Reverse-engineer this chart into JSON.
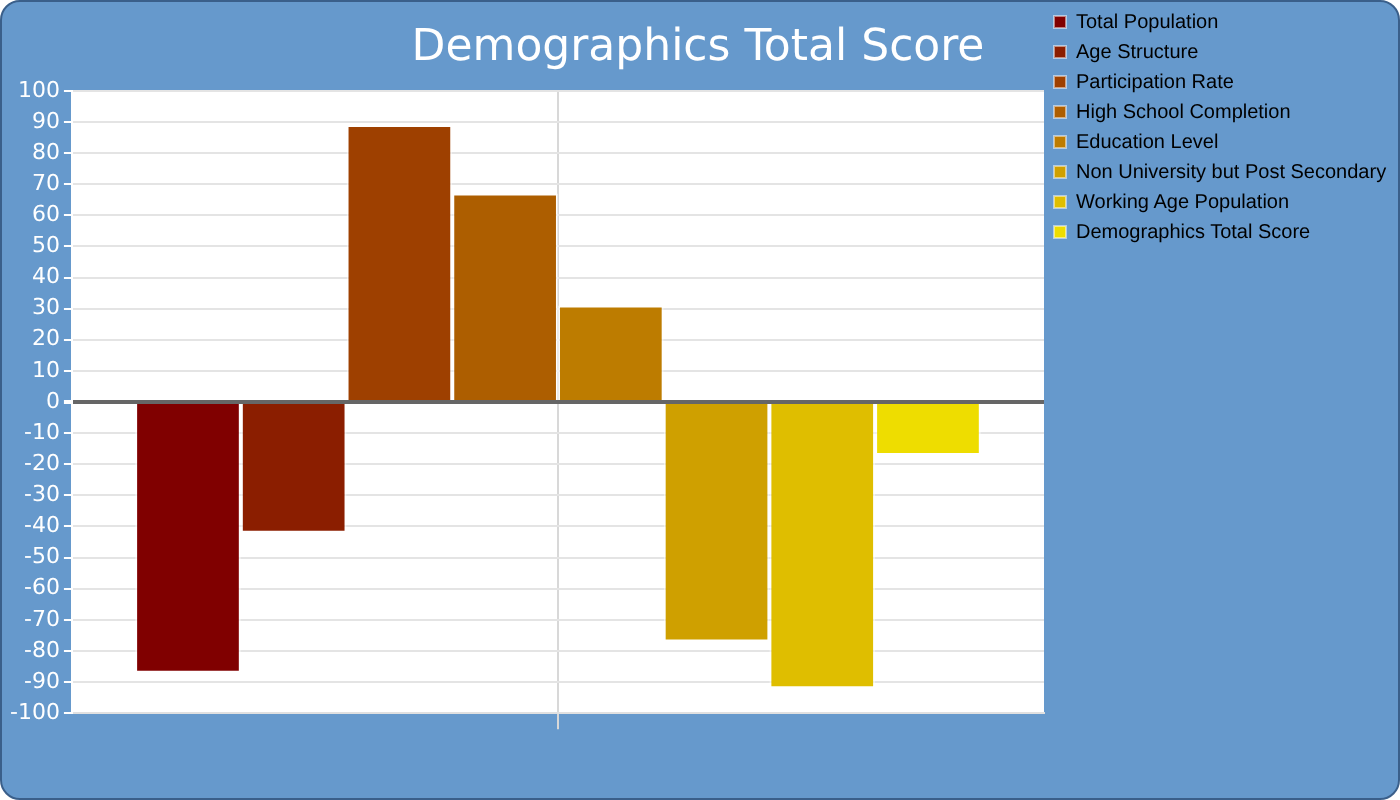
{
  "chart_data": {
    "type": "bar",
    "title": "Demographics Total Score",
    "categories": [
      null
    ],
    "series": [
      {
        "name": "Total Population",
        "color": "#800000",
        "values": [
          -87
        ]
      },
      {
        "name": "Age Structure",
        "color": "#8b1e00",
        "values": [
          -42
        ]
      },
      {
        "name": "Participation Rate",
        "color": "#9e4000",
        "values": [
          89
        ]
      },
      {
        "name": "High School Completion",
        "color": "#ad5e00",
        "values": [
          67
        ]
      },
      {
        "name": "Education Level",
        "color": "#bd7c00",
        "values": [
          31
        ]
      },
      {
        "name": "Non University but Post Secondary",
        "color": "#cfa000",
        "values": [
          -77
        ]
      },
      {
        "name": "Working Age Population",
        "color": "#dfbe00",
        "values": [
          -92
        ]
      },
      {
        "name": "Demographics Total Score",
        "color": "#eedd00",
        "values": [
          -17
        ]
      }
    ],
    "ylim": [
      -100,
      100
    ],
    "yticks": [
      -100,
      -90,
      -80,
      -70,
      -60,
      -50,
      -40,
      -30,
      -20,
      -10,
      0,
      10,
      20,
      30,
      40,
      50,
      60,
      70,
      80,
      90,
      100
    ],
    "grid": true,
    "legend": "right"
  }
}
